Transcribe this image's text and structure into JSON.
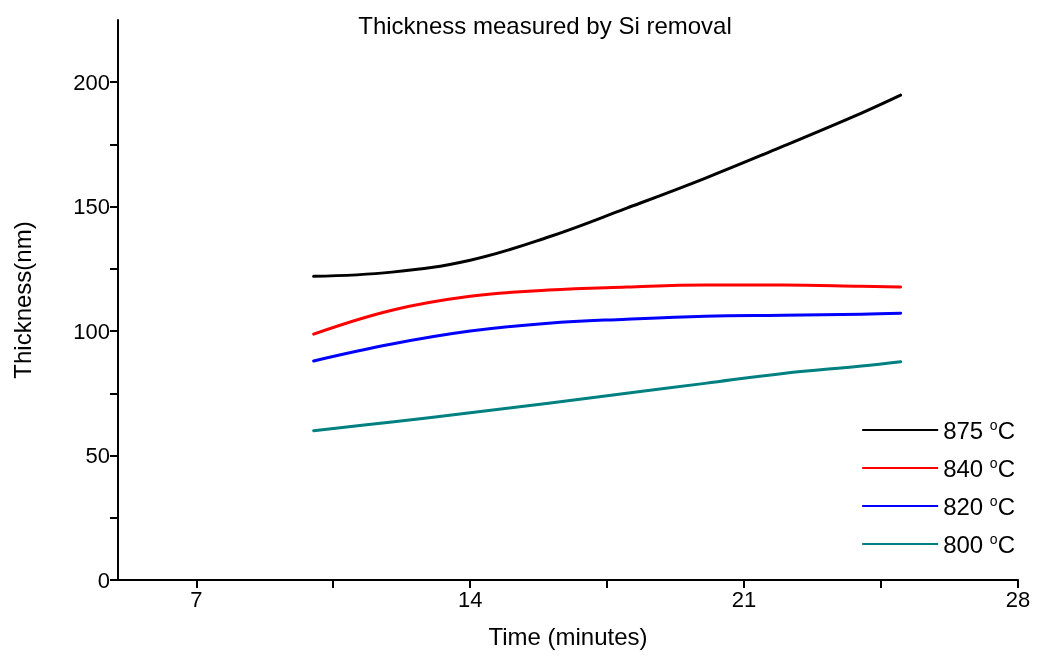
{
  "chart_data": {
    "type": "line",
    "title": "Thickness measured by Si removal",
    "xlabel": "Time (minutes)",
    "ylabel": "Thickness(nm)",
    "x": [
      10,
      12,
      14,
      16,
      18,
      20,
      22,
      24,
      25
    ],
    "series": [
      {
        "name": "875 $^{o}$C",
        "color": "#000000",
        "values": [
          122,
          123.7,
          128.5,
          137.8,
          149.4,
          161.4,
          174.3,
          187.6,
          194.8
        ]
      },
      {
        "name": "840 $^{o}$C",
        "color": "#ff0000",
        "values": [
          98.8,
          108.4,
          114,
          116.5,
          117.7,
          118.5,
          118.5,
          118,
          117.7
        ]
      },
      {
        "name": "820 $^{o}$C",
        "color": "#0000ff",
        "values": [
          88,
          94.8,
          100,
          103.2,
          104.8,
          106,
          106.4,
          106.8,
          107.2
        ]
      },
      {
        "name": "800 $^{o}$C",
        "color": "#008080",
        "values": [
          60,
          63.5,
          67.2,
          71,
          75,
          79,
          83,
          86,
          87.7
        ]
      }
    ],
    "xlim": [
      5,
      28
    ],
    "xticks": [
      7,
      14,
      21,
      28
    ],
    "ylim": [
      0,
      225
    ],
    "yticks": [
      0,
      50,
      100,
      150,
      200
    ],
    "grid": false,
    "legend": "bottom right",
    "marker": "none",
    "line_style": "solid"
  }
}
